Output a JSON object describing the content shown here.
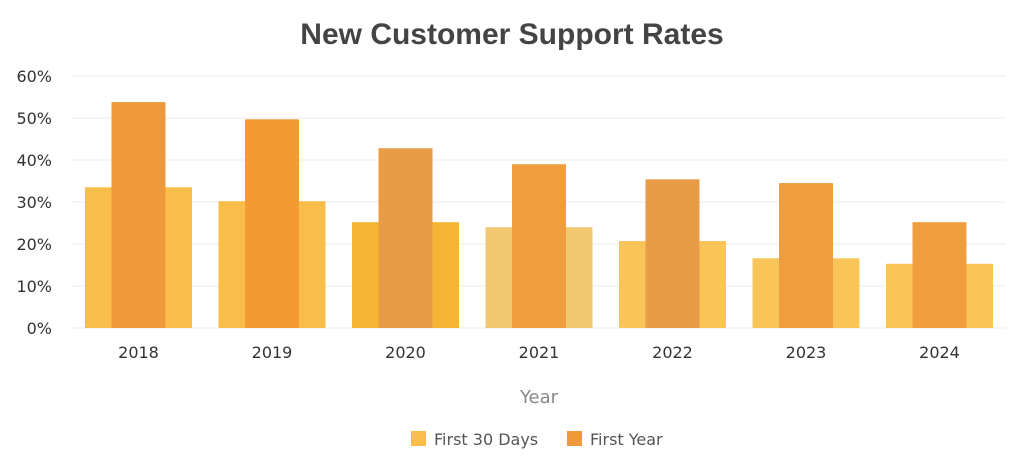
{
  "chart_data": {
    "type": "bar",
    "title": "New Customer Support Rates",
    "xlabel": "Year",
    "ylabel": "",
    "categories": [
      "2018",
      "2019",
      "2020",
      "2021",
      "2022",
      "2023",
      "2024"
    ],
    "series": [
      {
        "name": "First 30 Days",
        "values": [
          33.5,
          30.2,
          25.2,
          24,
          20.7,
          16.6,
          15.3
        ],
        "color": "#F9BE4A",
        "bar_colors": [
          "#F9BE4A",
          "#F9BE4A",
          "#F5B433",
          "#F3C76F",
          "#F9C458",
          "#F9C458",
          "#F9C458"
        ]
      },
      {
        "name": "First Year",
        "values": [
          53.8,
          49.7,
          42.8,
          39,
          35.4,
          34.5,
          25.2
        ],
        "color": "#EE9A3C",
        "bar_colors": [
          "#EE9A3C",
          "#F39A33",
          "#E99C46",
          "#EF9D3E",
          "#E99C46",
          "#EF9D3E",
          "#EF9D3E"
        ]
      }
    ],
    "ylim": [
      0,
      60
    ],
    "yticks": [
      0,
      10,
      20,
      30,
      40,
      50,
      60
    ],
    "ytick_labels": [
      "0%",
      "10%",
      "20%",
      "30%",
      "40%",
      "50%",
      "60%"
    ],
    "grid": true,
    "legend_position": "bottom-center",
    "grid_color": "#EBEBEB"
  }
}
